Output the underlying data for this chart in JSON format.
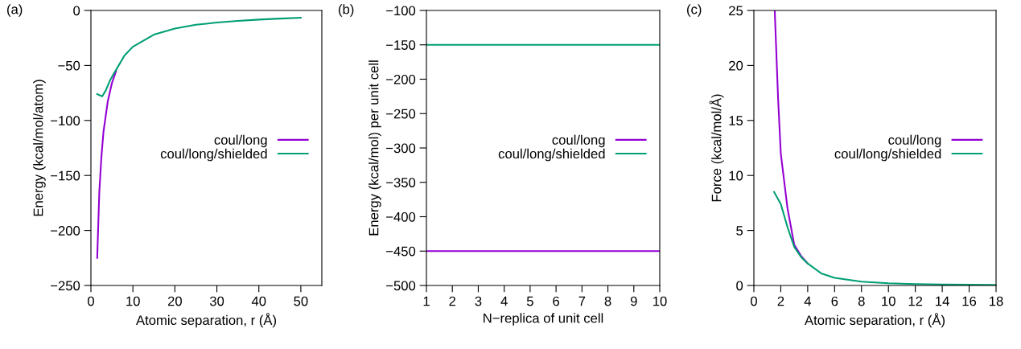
{
  "chart_data": [
    {
      "type": "line",
      "xlabel": "Atomic separation, r (Å)",
      "ylabel": "Energy (kcal/mol/atom)",
      "annotations": [
        "(a)"
      ],
      "xlim": [
        0,
        55
      ],
      "xticks": [
        0,
        10,
        20,
        30,
        40,
        50
      ],
      "ylim": [
        -250,
        0
      ],
      "yticks": [
        -250,
        -200,
        -150,
        -100,
        -50,
        0
      ],
      "grid": false,
      "legend": "right",
      "series": [
        {
          "name": "coul/long",
          "color": "#9400d3",
          "x": [
            1.5,
            2,
            2.5,
            3,
            4,
            5,
            6
          ],
          "values": [
            -225,
            -165,
            -133,
            -110,
            -83,
            -66,
            -55
          ]
        },
        {
          "name": "coul/long/shielded",
          "color": "#009e73",
          "x": [
            1.5,
            2,
            2.7,
            3.5,
            4.5,
            5.5,
            6,
            8,
            10,
            15,
            20,
            25,
            30,
            35,
            40,
            45,
            50
          ],
          "values": [
            -76,
            -77,
            -78,
            -73,
            -64,
            -57,
            -54,
            -41,
            -33,
            -22,
            -16.5,
            -13,
            -11,
            -9.5,
            -8.3,
            -7.4,
            -6.6
          ]
        }
      ]
    },
    {
      "type": "line",
      "xlabel": "N−replica of unit cell",
      "ylabel": "Energy (kcal/mol) per unit cell",
      "annotations": [
        "(b)"
      ],
      "xlim": [
        1,
        10
      ],
      "xticks": [
        1,
        2,
        3,
        4,
        5,
        6,
        7,
        8,
        9,
        10
      ],
      "ylim": [
        -500,
        -100
      ],
      "yticks": [
        -500,
        -450,
        -400,
        -350,
        -300,
        -250,
        -200,
        -150,
        -100
      ],
      "grid": false,
      "legend": "right",
      "series": [
        {
          "name": "coul/long",
          "color": "#9400d3",
          "x": [
            1,
            2,
            3,
            4,
            5,
            6,
            7,
            8,
            9,
            10
          ],
          "values": [
            -450,
            -450,
            -450,
            -450,
            -450,
            -450,
            -450,
            -450,
            -450,
            -450
          ]
        },
        {
          "name": "coul/long/shielded",
          "color": "#009e73",
          "x": [
            1,
            2,
            3,
            4,
            5,
            6,
            7,
            8,
            9,
            10
          ],
          "values": [
            -150,
            -150,
            -150,
            -150,
            -150,
            -150,
            -150,
            -150,
            -150,
            -150
          ]
        }
      ]
    },
    {
      "type": "line",
      "xlabel": "Atomic separation, r (Å)",
      "ylabel": "Force (kcal/mol/Å)",
      "annotations": [
        "(c)"
      ],
      "xlim": [
        0,
        18
      ],
      "xticks": [
        0,
        2,
        4,
        6,
        8,
        10,
        12,
        14,
        16,
        18
      ],
      "ylim": [
        0,
        25
      ],
      "yticks": [
        0,
        5,
        10,
        15,
        20,
        25
      ],
      "grid": false,
      "legend": "right",
      "series": [
        {
          "name": "coul/long",
          "color": "#9400d3",
          "x": [
            1.55,
            1.8,
            2,
            2.5,
            3,
            3.5,
            4
          ],
          "values": [
            25,
            17,
            12,
            7,
            3.7,
            2.7,
            2.0
          ]
        },
        {
          "name": "coul/long/shielded",
          "color": "#009e73",
          "x": [
            1.5,
            2,
            2.5,
            3,
            3.5,
            4,
            5,
            6,
            8,
            10,
            12,
            14,
            18
          ],
          "values": [
            8.5,
            7.4,
            5.3,
            3.5,
            2.6,
            2.0,
            1.1,
            0.7,
            0.35,
            0.2,
            0.13,
            0.08,
            0.05
          ]
        }
      ]
    }
  ]
}
